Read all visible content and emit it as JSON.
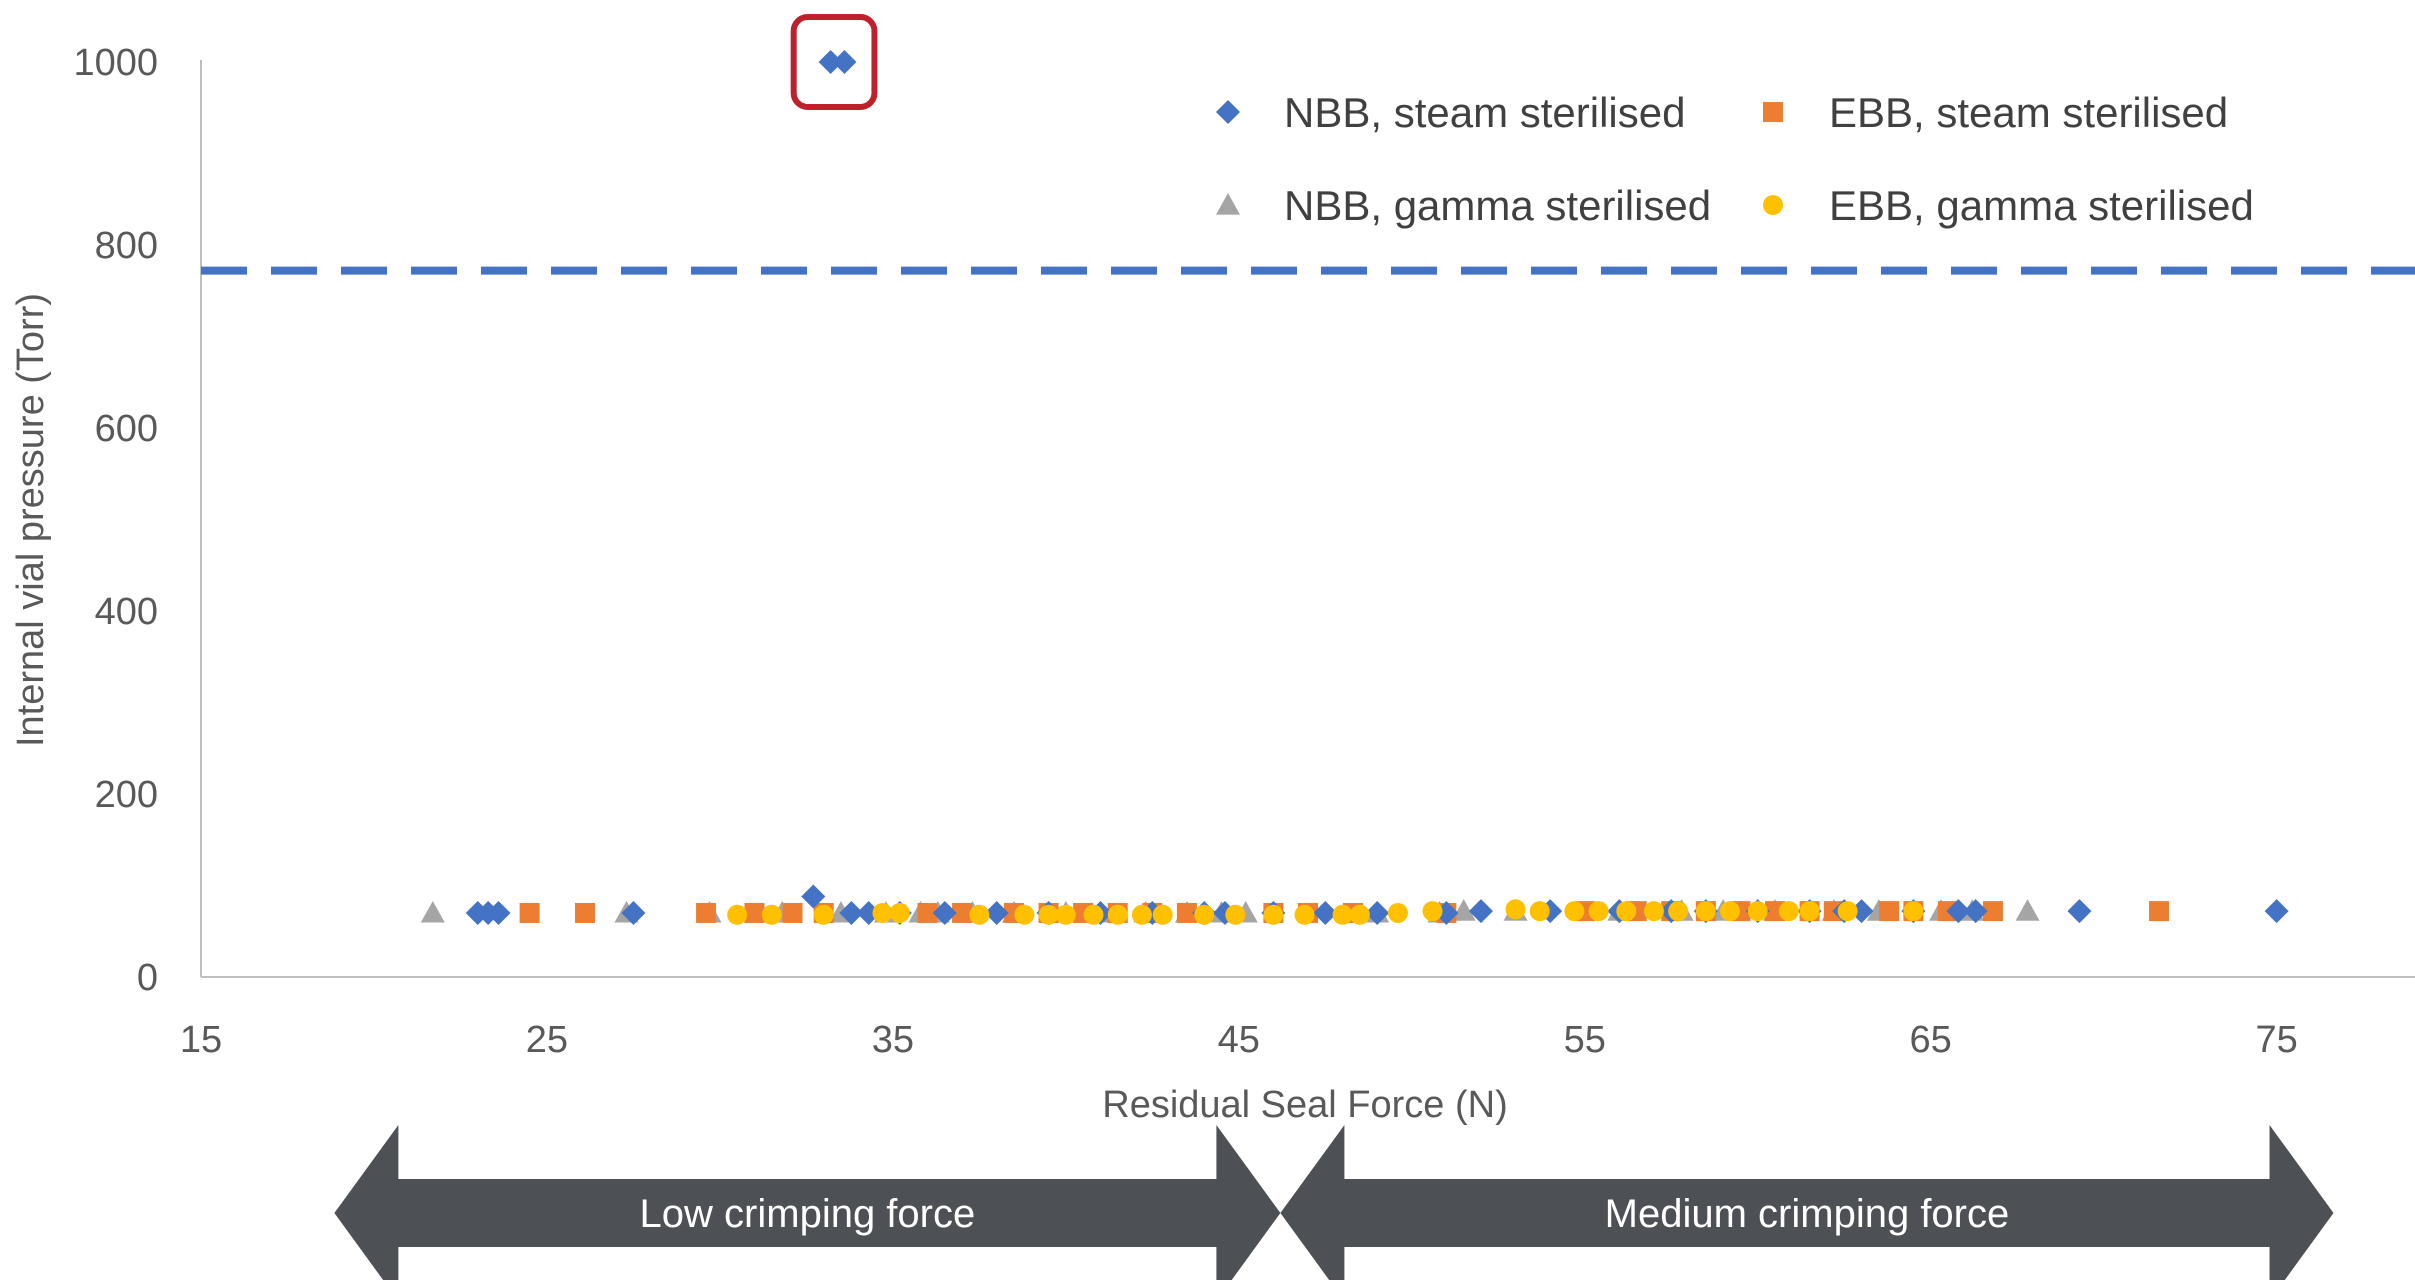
{
  "chart_data": {
    "type": "scatter",
    "xlabel": "Residual Seal Force (N)",
    "ylabel": "Internal vial pressure (Torr)",
    "xlim": [
      15,
      79
    ],
    "ylim": [
      0,
      1000
    ],
    "x_ticks": [
      15,
      25,
      35,
      45,
      55,
      65,
      75
    ],
    "y_ticks": [
      0,
      200,
      400,
      600,
      800,
      1000
    ],
    "grid": false,
    "legend_placement": "top-right",
    "reference_line": {
      "y": 772,
      "style": "dashed",
      "color": "#4472C4"
    },
    "highlight_box": {
      "x": [
        33.0,
        33.6
      ],
      "y": 1000,
      "color": "#C0202C"
    },
    "series": [
      {
        "name": "NBB, steam sterilised",
        "marker": "diamond",
        "color": "#4472C4",
        "points": [
          [
            23.0,
            70
          ],
          [
            23.3,
            70
          ],
          [
            23.6,
            70
          ],
          [
            27.5,
            70
          ],
          [
            32.7,
            88
          ],
          [
            33.2,
            1000
          ],
          [
            33.6,
            1000
          ],
          [
            33.8,
            70
          ],
          [
            34.3,
            70
          ],
          [
            35.2,
            70
          ],
          [
            36.5,
            70
          ],
          [
            38.0,
            70
          ],
          [
            39.5,
            70
          ],
          [
            41.0,
            70
          ],
          [
            42.5,
            70
          ],
          [
            44.0,
            70
          ],
          [
            44.6,
            70
          ],
          [
            46.0,
            70
          ],
          [
            47.5,
            70
          ],
          [
            49.0,
            70
          ],
          [
            51.0,
            70
          ],
          [
            52.0,
            72
          ],
          [
            54.0,
            72
          ],
          [
            56.0,
            72
          ],
          [
            57.5,
            72
          ],
          [
            58.5,
            72
          ],
          [
            60.0,
            72
          ],
          [
            61.5,
            72
          ],
          [
            62.5,
            72
          ],
          [
            63.0,
            72
          ],
          [
            64.5,
            72
          ],
          [
            65.8,
            72
          ],
          [
            66.3,
            72
          ],
          [
            69.3,
            72
          ],
          [
            75.0,
            72
          ]
        ]
      },
      {
        "name": "EBB, steam sterilised",
        "marker": "square",
        "color": "#ED7D31",
        "points": [
          [
            24.5,
            70
          ],
          [
            26.1,
            70
          ],
          [
            29.6,
            70
          ],
          [
            31.0,
            70
          ],
          [
            32.1,
            70
          ],
          [
            33.0,
            70
          ],
          [
            36.0,
            70
          ],
          [
            37.0,
            70
          ],
          [
            38.5,
            70
          ],
          [
            39.5,
            70
          ],
          [
            40.5,
            70
          ],
          [
            41.5,
            70
          ],
          [
            42.5,
            70
          ],
          [
            43.5,
            70
          ],
          [
            46.0,
            70
          ],
          [
            47.0,
            70
          ],
          [
            48.3,
            70
          ],
          [
            51.0,
            70
          ],
          [
            55.0,
            72
          ],
          [
            56.5,
            72
          ],
          [
            57.5,
            72
          ],
          [
            58.5,
            72
          ],
          [
            59.5,
            72
          ],
          [
            60.5,
            72
          ],
          [
            61.5,
            72
          ],
          [
            62.2,
            72
          ],
          [
            63.8,
            72
          ],
          [
            64.5,
            72
          ],
          [
            65.5,
            72
          ],
          [
            66.8,
            72
          ],
          [
            71.6,
            72
          ]
        ]
      },
      {
        "name": "NBB, gamma sterilised",
        "marker": "triangle",
        "color": "#A5A5A5",
        "points": [
          [
            21.7,
            70
          ],
          [
            27.3,
            70
          ],
          [
            29.7,
            70
          ],
          [
            31.8,
            70
          ],
          [
            33.5,
            70
          ],
          [
            34.8,
            70
          ],
          [
            35.8,
            70
          ],
          [
            36.3,
            70
          ],
          [
            37.3,
            70
          ],
          [
            38.5,
            70
          ],
          [
            40.0,
            70
          ],
          [
            41.0,
            70
          ],
          [
            42.3,
            70
          ],
          [
            43.5,
            70
          ],
          [
            44.5,
            70
          ],
          [
            45.2,
            70
          ],
          [
            49.0,
            70
          ],
          [
            50.8,
            70
          ],
          [
            51.5,
            72
          ],
          [
            53.0,
            72
          ],
          [
            56.0,
            72
          ],
          [
            57.8,
            72
          ],
          [
            59.0,
            72
          ],
          [
            60.5,
            72
          ],
          [
            62.2,
            72
          ],
          [
            63.5,
            72
          ],
          [
            65.3,
            72
          ],
          [
            66.2,
            72
          ],
          [
            67.8,
            72
          ]
        ]
      },
      {
        "name": "EBB, gamma sterilised",
        "marker": "circle",
        "color": "#FFC000",
        "points": [
          [
            30.5,
            68
          ],
          [
            31.5,
            68
          ],
          [
            33.0,
            68
          ],
          [
            34.7,
            70
          ],
          [
            35.2,
            70
          ],
          [
            37.5,
            68
          ],
          [
            38.8,
            68
          ],
          [
            39.5,
            68
          ],
          [
            40.0,
            68
          ],
          [
            40.8,
            68
          ],
          [
            41.5,
            68
          ],
          [
            42.2,
            68
          ],
          [
            42.8,
            68
          ],
          [
            44.0,
            68
          ],
          [
            44.9,
            68
          ],
          [
            46.0,
            68
          ],
          [
            46.9,
            68
          ],
          [
            48.0,
            68
          ],
          [
            48.5,
            68
          ],
          [
            49.6,
            70
          ],
          [
            50.6,
            72
          ],
          [
            53.0,
            74
          ],
          [
            53.7,
            72
          ],
          [
            54.7,
            72
          ],
          [
            55.4,
            72
          ],
          [
            56.2,
            72
          ],
          [
            57.0,
            72
          ],
          [
            57.7,
            72
          ],
          [
            58.5,
            72
          ],
          [
            59.2,
            72
          ],
          [
            60.0,
            72
          ],
          [
            60.9,
            72
          ],
          [
            61.5,
            72
          ],
          [
            62.6,
            72
          ],
          [
            64.5,
            72
          ]
        ]
      }
    ],
    "annotations": [
      {
        "label": "Low crimping force",
        "x_range": [
          19,
          46
        ],
        "style": "double-arrow"
      },
      {
        "label": "Medium crimping force",
        "x_range": [
          46,
          76.5
        ],
        "style": "double-arrow"
      }
    ]
  }
}
